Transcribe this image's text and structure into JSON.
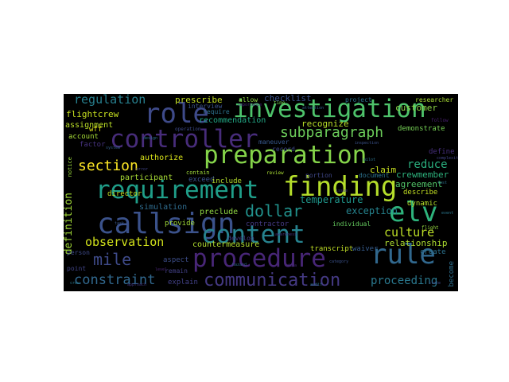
{
  "word_cloud": {
    "background": "#000000",
    "words": [
      {
        "text": "investigation",
        "color": "#4ec36b"
      },
      {
        "text": "preparation",
        "color": "#85d44a"
      },
      {
        "text": "controller",
        "color": "#472c7a"
      },
      {
        "text": "requirement",
        "color": "#1f9e89"
      },
      {
        "text": "callsign",
        "color": "#3b528b"
      },
      {
        "text": "procedure",
        "color": "#482677"
      },
      {
        "text": "content",
        "color": "#26828e"
      },
      {
        "text": "finding",
        "color": "#b5de2b"
      },
      {
        "text": "role",
        "color": "#3e4a89"
      },
      {
        "text": "rule",
        "color": "#31688e"
      },
      {
        "text": "elv",
        "color": "#2eb37c"
      },
      {
        "text": "section",
        "color": "#fde725"
      },
      {
        "text": "communication",
        "color": "#443983"
      },
      {
        "text": "dollar",
        "color": "#21918c"
      },
      {
        "text": "mile",
        "color": "#3e4a89"
      },
      {
        "text": "subparagraph",
        "color": "#6ccd5a"
      },
      {
        "text": "constraint",
        "color": "#31688e"
      },
      {
        "text": "observation",
        "color": "#d2e21b"
      },
      {
        "text": "culture",
        "color": "#bddf26"
      },
      {
        "text": "regulation",
        "color": "#277f8e"
      },
      {
        "text": "proceeding",
        "color": "#2a788e"
      },
      {
        "text": "reduce",
        "color": "#2ab07f"
      },
      {
        "text": "definition",
        "color": "#a2da37"
      },
      {
        "text": "exception",
        "color": "#25838e"
      },
      {
        "text": "relationship",
        "color": "#addc30"
      },
      {
        "text": "temperature",
        "color": "#1f968b"
      },
      {
        "text": "checklist",
        "color": "#3b528b"
      },
      {
        "text": "prescribe",
        "color": "#c2df23"
      },
      {
        "text": "claim",
        "color": "#c8e020"
      },
      {
        "text": "recognize",
        "color": "#b8de29"
      },
      {
        "text": "customer",
        "color": "#8bd646"
      },
      {
        "text": "crewmember",
        "color": "#2db27d"
      },
      {
        "text": "agreement",
        "color": "#52c569"
      },
      {
        "text": "flightcrew",
        "color": "#c8e020"
      },
      {
        "text": "recommendation",
        "color": "#22a785"
      },
      {
        "text": "assignment",
        "color": "#bade28"
      },
      {
        "text": "authorize",
        "color": "#d8e219"
      },
      {
        "text": "participant",
        "color": "#a8db34"
      },
      {
        "text": "simulation",
        "color": "#2f6c8e"
      },
      {
        "text": "preclude",
        "color": "#90d743"
      },
      {
        "text": "countermeasure",
        "color": "#b0dd2f"
      },
      {
        "text": "contractor",
        "color": "#443983"
      },
      {
        "text": "provide",
        "color": "#a0da39"
      },
      {
        "text": "explain",
        "color": "#424086"
      },
      {
        "text": "aspect",
        "color": "#3d4e8a"
      },
      {
        "text": "transcript",
        "color": "#c0df25"
      },
      {
        "text": "waiver",
        "color": "#365c8d"
      },
      {
        "text": "create",
        "color": "#2c728e"
      },
      {
        "text": "become",
        "color": "#2e6f8e"
      },
      {
        "text": "describe",
        "color": "#c2df23"
      },
      {
        "text": "dynamic",
        "color": "#b5de2b"
      },
      {
        "text": "define",
        "color": "#472f7d"
      },
      {
        "text": "demonstrate",
        "color": "#75d054"
      },
      {
        "text": "project",
        "color": "#2c728e"
      },
      {
        "text": "researcher",
        "color": "#a8db34"
      },
      {
        "text": "allow",
        "color": "#8fd744"
      },
      {
        "text": "interview",
        "color": "#3b528b"
      },
      {
        "text": "require",
        "color": "#2c728e"
      },
      {
        "text": "maneuver",
        "color": "#38588c"
      },
      {
        "text": "record",
        "color": "#3e4989"
      },
      {
        "text": "exceed",
        "color": "#3b528b"
      },
      {
        "text": "include",
        "color": "#b5de2b"
      },
      {
        "text": "contain",
        "color": "#a0da39"
      },
      {
        "text": "director",
        "color": "#c2df23"
      },
      {
        "text": "wff",
        "color": "#dde318"
      },
      {
        "text": "factor",
        "color": "#46337f"
      },
      {
        "text": "account",
        "color": "#a5db36"
      },
      {
        "text": "notice",
        "color": "#9bd93c"
      },
      {
        "text": "individual",
        "color": "#65cb5e"
      },
      {
        "text": "develop",
        "color": "#443983"
      },
      {
        "text": "portion",
        "color": "#3f4788"
      },
      {
        "text": "document",
        "color": "#2c728e"
      },
      {
        "text": "person",
        "color": "#3e4a89"
      },
      {
        "text": "point",
        "color": "#414487"
      },
      {
        "text": "remain",
        "color": "#424086"
      },
      {
        "text": "review",
        "color": "#a8db34"
      },
      {
        "text": "flight",
        "color": "#95d840"
      },
      {
        "text": "follow",
        "color": "#481f70"
      },
      {
        "text": "time",
        "color": "#75d054"
      },
      {
        "text": "operation",
        "color": "#3e4a89"
      },
      {
        "text": "complexity",
        "color": "#414487"
      },
      {
        "text": "importance",
        "color": "#472c7a"
      },
      {
        "text": "inspection",
        "color": "#3b528b"
      },
      {
        "text": "attention",
        "color": "#32648e"
      },
      {
        "text": "approach",
        "color": "#443983"
      },
      {
        "text": "hazard",
        "color": "#31688e"
      },
      {
        "text": "design",
        "color": "#2e6f8e"
      },
      {
        "text": "awareness",
        "color": "#46337f"
      },
      {
        "text": "category",
        "color": "#3b528b"
      },
      {
        "text": "event",
        "color": "#2a788e"
      },
      {
        "text": "system",
        "color": "#35608d"
      },
      {
        "text": "level",
        "color": "#482475"
      },
      {
        "text": "test",
        "color": "#2c728e"
      },
      {
        "text": "task",
        "color": "#39568c"
      },
      {
        "text": "pilot",
        "color": "#2c728e"
      },
      {
        "text": "data",
        "color": "#472d7b"
      },
      {
        "text": "state",
        "color": "#3e4a89"
      },
      {
        "text": "crew",
        "color": "#2a788e"
      },
      {
        "text": "issue",
        "color": "#443983"
      },
      {
        "text": "error",
        "color": "#404588"
      },
      {
        "text": "audit",
        "color": "#2c728e"
      }
    ]
  }
}
